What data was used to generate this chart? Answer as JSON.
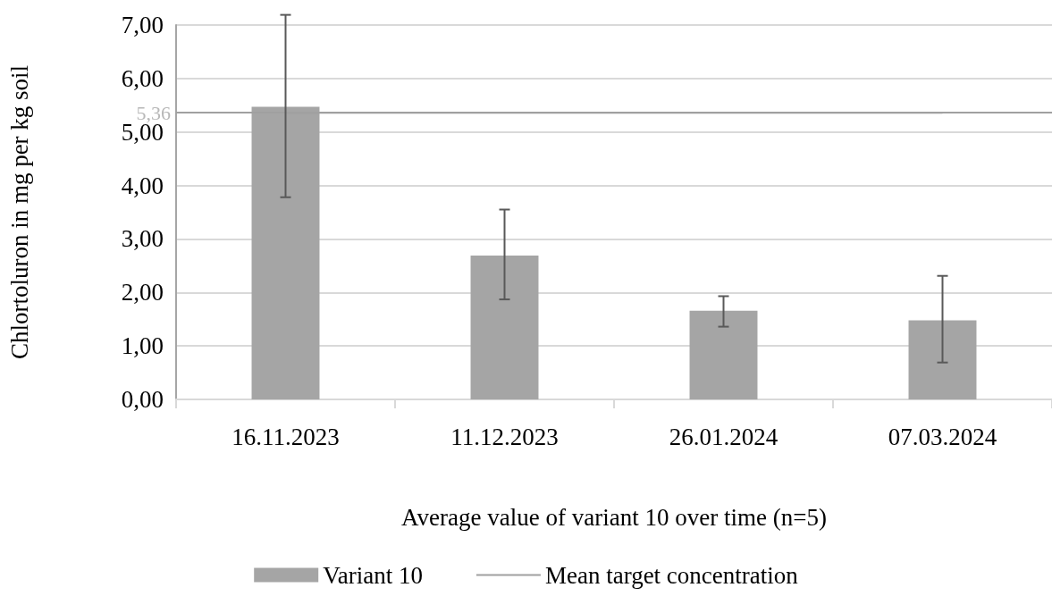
{
  "chart_data": {
    "type": "bar",
    "xlabel": "Average value of variant 10 over time (n=5)",
    "ylabel": "Chlortoluron in mg per kg soil",
    "categories": [
      "16.11.2023",
      "11.12.2023",
      "26.01.2024",
      "07.03.2024"
    ],
    "series": [
      {
        "name": "Variant 10",
        "color": "#a5a5a5",
        "values": [
          5.47,
          2.69,
          1.66,
          1.48
        ],
        "errors": [
          [
            3.78,
            7.19
          ],
          [
            1.87,
            3.55
          ],
          [
            1.36,
            1.93
          ],
          [
            0.69,
            2.31
          ]
        ]
      },
      {
        "name": "Mean target concentration",
        "type": "line",
        "color": "#a0a0a0",
        "values": [
          5.36,
          5.36,
          5.36,
          5.36
        ]
      }
    ],
    "ref_lines": [
      {
        "axis": "y",
        "value": 5.36,
        "label": "5,36",
        "color": "#a0a0a0"
      }
    ],
    "ylim": [
      0,
      7
    ],
    "yticks": [
      {
        "value": 0,
        "label": "0,00"
      },
      {
        "value": 1,
        "label": "1,00"
      },
      {
        "value": 2,
        "label": "2,00"
      },
      {
        "value": 3,
        "label": "3,00"
      },
      {
        "value": 4,
        "label": "4,00"
      },
      {
        "value": 5,
        "label": "5,00"
      },
      {
        "value": 6,
        "label": "6,00"
      },
      {
        "value": 7,
        "label": "7,00"
      }
    ],
    "grid": "y",
    "legend": "bottom",
    "marker": "none"
  }
}
